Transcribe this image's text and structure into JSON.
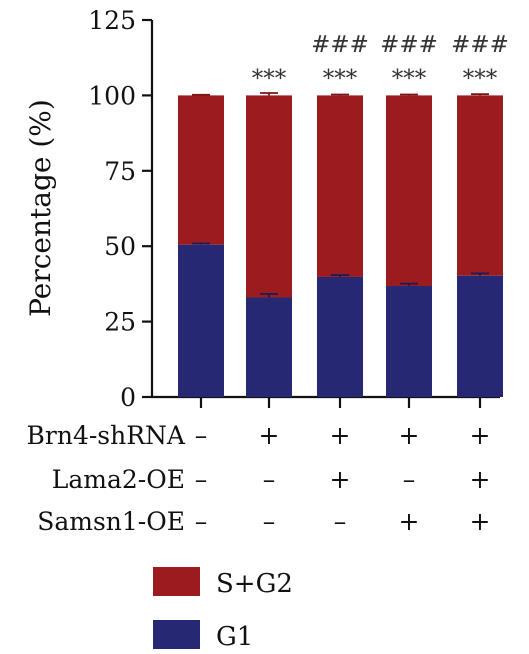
{
  "chart_data": {
    "type": "bar",
    "stacked": true,
    "title": "",
    "ylabel": "Percentage (%)",
    "ylim": [
      0,
      125
    ],
    "yticks": [
      "0",
      "25",
      "50",
      "75",
      "100",
      "125"
    ],
    "ytick_values": [
      0,
      25,
      50,
      75,
      100,
      125
    ],
    "categories": [
      "1",
      "2",
      "3",
      "4",
      "5"
    ],
    "series": [
      {
        "name": "G1",
        "color": "#272874",
        "values": [
          50.5,
          33.0,
          39.8,
          36.8,
          40.2
        ],
        "errors": [
          0.4,
          1.2,
          0.6,
          0.8,
          0.8
        ]
      },
      {
        "name": "S+G2",
        "color": "#9c1b1f",
        "values": [
          49.5,
          67.0,
          60.2,
          63.2,
          59.8
        ],
        "errors": [
          0.2,
          0.8,
          0.3,
          0.3,
          0.4
        ]
      }
    ],
    "conditions": [
      {
        "label": "Brn4-shRNA",
        "marks": [
          "–",
          "+",
          "+",
          "+",
          "+"
        ]
      },
      {
        "label": "Lama2-OE",
        "marks": [
          "–",
          "–",
          "+",
          "–",
          "+"
        ]
      },
      {
        "label": "Samsn1-OE",
        "marks": [
          "–",
          "–",
          "–",
          "+",
          "+"
        ]
      }
    ],
    "annotations_row1": [
      "",
      "***",
      "***",
      "***",
      "***"
    ],
    "annotations_row2": [
      "",
      "",
      "###",
      "###",
      "###"
    ],
    "legend": [
      {
        "name": "S+G2",
        "color": "#9c1b1f"
      },
      {
        "name": "G1",
        "color": "#272874"
      }
    ],
    "legend_position": "bottom"
  }
}
